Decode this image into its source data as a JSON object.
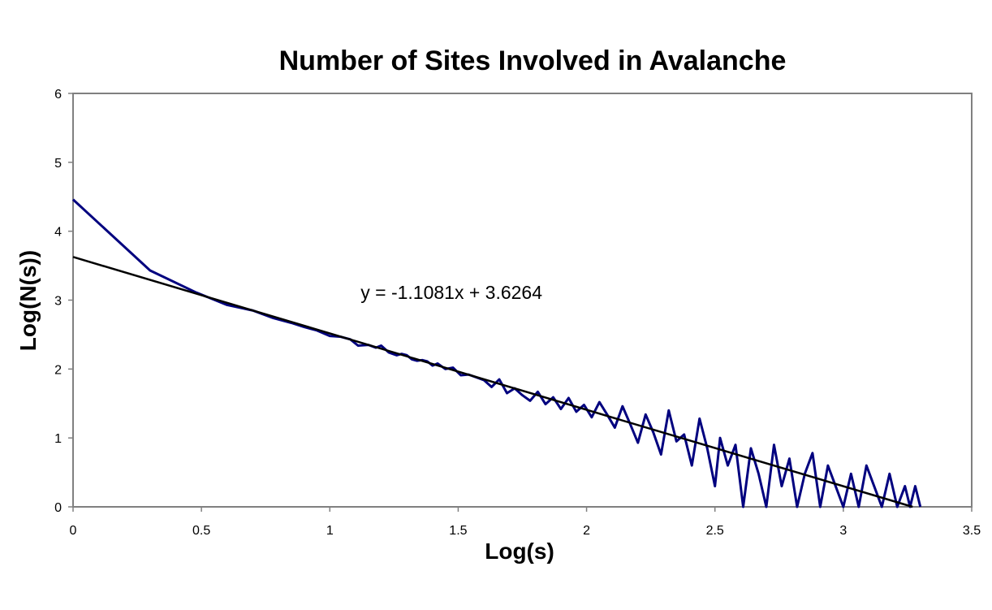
{
  "chart_data": {
    "type": "line",
    "title": "Number of Sites Involved in Avalanche",
    "xlabel": "Log(s)",
    "ylabel": "Log(N(s))",
    "xlim": [
      0,
      3.5
    ],
    "ylim": [
      0,
      6
    ],
    "xticks": [
      "0",
      "0.5",
      "1",
      "1.5",
      "2",
      "2.5",
      "3",
      "3.5"
    ],
    "yticks": [
      "0",
      "1",
      "2",
      "3",
      "4",
      "5",
      "6"
    ],
    "grid": false,
    "legend": "none",
    "colors": {
      "data": "#00007f",
      "fit": "#000000",
      "frame": "#808080"
    },
    "series": [
      {
        "kind": "data",
        "x": [
          0,
          0.3,
          0.48,
          0.6,
          0.7,
          0.78,
          0.85,
          0.9,
          0.95,
          1.0,
          1.04,
          1.08,
          1.11,
          1.15,
          1.18,
          1.2,
          1.23,
          1.26,
          1.28,
          1.3,
          1.32,
          1.34,
          1.36,
          1.38,
          1.4,
          1.42,
          1.45,
          1.48,
          1.51,
          1.54,
          1.57,
          1.6,
          1.63,
          1.66,
          1.69,
          1.72,
          1.75,
          1.78,
          1.81,
          1.84,
          1.87,
          1.9,
          1.93,
          1.96,
          1.99,
          2.02,
          2.05,
          2.08,
          2.11,
          2.14,
          2.17,
          2.2,
          2.23,
          2.26,
          2.29,
          2.32,
          2.35,
          2.38,
          2.41,
          2.44,
          2.47,
          2.5,
          2.52,
          2.55,
          2.58,
          2.61,
          2.64,
          2.67,
          2.7,
          2.73,
          2.76,
          2.79,
          2.82,
          2.85,
          2.88,
          2.91,
          2.94,
          2.97,
          3.0,
          3.03,
          3.06,
          3.09,
          3.12,
          3.15,
          3.18,
          3.21,
          3.24,
          3.26,
          3.28,
          3.3
        ],
        "y": [
          4.46,
          3.43,
          3.11,
          2.93,
          2.85,
          2.74,
          2.67,
          2.61,
          2.56,
          2.48,
          2.47,
          2.43,
          2.34,
          2.35,
          2.31,
          2.34,
          2.24,
          2.2,
          2.22,
          2.2,
          2.14,
          2.12,
          2.13,
          2.11,
          2.05,
          2.08,
          2.0,
          2.02,
          1.91,
          1.92,
          1.88,
          1.84,
          1.74,
          1.85,
          1.65,
          1.72,
          1.62,
          1.54,
          1.67,
          1.49,
          1.59,
          1.42,
          1.58,
          1.38,
          1.48,
          1.3,
          1.52,
          1.34,
          1.15,
          1.46,
          1.2,
          0.93,
          1.34,
          1.08,
          0.76,
          1.4,
          0.95,
          1.05,
          0.6,
          1.28,
          0.85,
          0.3,
          1.0,
          0.6,
          0.9,
          0.0,
          0.85,
          0.48,
          0.0,
          0.9,
          0.3,
          0.7,
          0.0,
          0.48,
          0.78,
          0.0,
          0.6,
          0.3,
          0.0,
          0.48,
          0.0,
          0.6,
          0.3,
          0.0,
          0.48,
          0.0,
          0.3,
          0.0,
          0.3,
          0.0
        ]
      },
      {
        "kind": "fit",
        "x": [
          0,
          3.27
        ],
        "y": [
          3.6264,
          0.0
        ]
      }
    ],
    "annotations": [
      {
        "text": "y = -1.1081x + 3.6264",
        "x": 1.12,
        "y": 3.02
      }
    ]
  }
}
